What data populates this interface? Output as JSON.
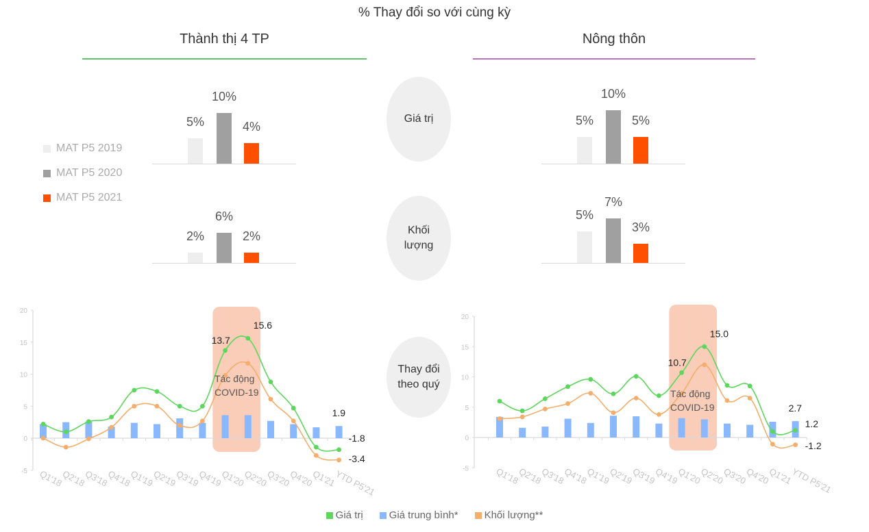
{
  "title": "% Thay đổi so với cùng kỳ",
  "regions": [
    {
      "name": "Thành thị 4 TP",
      "line_color": "#5cc46b"
    },
    {
      "name": "Nông thôn",
      "line_color": "#b773c0"
    }
  ],
  "metrics": [
    "Giá trị",
    "Khối\nlượng",
    "Thay đổi\ntheo quý"
  ],
  "metric_labels": {
    "value": "Giá trị",
    "volume_1": "Khối",
    "volume_2": "lượng",
    "quarterly_1": "Thay đổi",
    "quarterly_2": "theo quý"
  },
  "mat_legend": [
    {
      "label": "MAT P5 2019",
      "color": "#eeeeee"
    },
    {
      "label": "MAT P5 2020",
      "color": "#a0a0a0"
    },
    {
      "label": "MAT P5 2021",
      "color": "#ff5000"
    }
  ],
  "bottom_legend": [
    {
      "label": "Giá trị",
      "color": "#5cd65c"
    },
    {
      "label": "Giá trung bình*",
      "color": "#8ab8ff"
    },
    {
      "label": "Khối lượng**",
      "color": "#f5ad6b"
    }
  ],
  "colors": {
    "green": "#5cd65c",
    "blue": "#8ab8ff",
    "orange": "#f5ad6b",
    "covid_box": "#f9cdb8",
    "axis": "#d9d9d9",
    "tick": "#c8c8c8"
  },
  "annotation": {
    "covid_line1": "Tác động",
    "covid_line2": "COVID-19"
  },
  "chart_data": [
    {
      "type": "bar",
      "title": "Thành thị 4 TP - Giá trị",
      "categories": [
        "MAT P5 2019",
        "MAT P5 2020",
        "MAT P5 2021"
      ],
      "values": [
        5,
        10,
        4
      ],
      "labels": [
        "5%",
        "10%",
        "4%"
      ]
    },
    {
      "type": "bar",
      "title": "Thành thị 4 TP - Khối lượng",
      "categories": [
        "MAT P5 2019",
        "MAT P5 2020",
        "MAT P5 2021"
      ],
      "values": [
        2,
        6,
        2
      ],
      "labels": [
        "2%",
        "6%",
        "2%"
      ]
    },
    {
      "type": "bar",
      "title": "Nông thôn - Giá trị",
      "categories": [
        "MAT P5 2019",
        "MAT P5 2020",
        "MAT P5 2021"
      ],
      "values": [
        5,
        10,
        5
      ],
      "labels": [
        "5%",
        "10%",
        "5%"
      ]
    },
    {
      "type": "bar",
      "title": "Nông thôn - Khối lượng",
      "categories": [
        "MAT P5 2019",
        "MAT P5 2020",
        "MAT P5 2021"
      ],
      "values": [
        5,
        7,
        3
      ],
      "labels": [
        "5%",
        "7%",
        "3%"
      ]
    },
    {
      "type": "line",
      "title": "Thành thị 4 TP - Thay đổi theo quý",
      "categories": [
        "Q1'18",
        "Q2'18",
        "Q3'18",
        "Q4'18",
        "Q1'19",
        "Q2'19",
        "Q3'19",
        "Q4'19",
        "Q1'20",
        "Q2'20",
        "Q3'20",
        "Q4'20",
        "Q1'21",
        "YTD P5'21"
      ],
      "ylim": [
        -5,
        20
      ],
      "yticks": [
        -5,
        0,
        5,
        10,
        15,
        20
      ],
      "series": [
        {
          "name": "Giá trị",
          "kind": "line",
          "values": [
            2.2,
            1.0,
            2.6,
            3.3,
            7.5,
            7.3,
            5.0,
            5.0,
            13.7,
            15.6,
            8.8,
            4.7,
            -1.4,
            -1.8
          ]
        },
        {
          "name": "Giá trung bình*",
          "kind": "bar",
          "values": [
            2.2,
            2.5,
            2.6,
            1.8,
            2.4,
            2.2,
            3.1,
            2.4,
            3.6,
            3.6,
            2.7,
            2.2,
            1.7,
            1.9
          ]
        },
        {
          "name": "Khối lượng**",
          "kind": "line",
          "values": [
            0.0,
            -1.4,
            -0.1,
            1.7,
            5.0,
            5.0,
            2.0,
            2.7,
            9.8,
            11.7,
            6.1,
            2.7,
            -2.7,
            -3.4
          ]
        }
      ],
      "data_labels": [
        {
          "text": "13.7",
          "index": 8
        },
        {
          "text": "15.6",
          "index": 9
        },
        {
          "text": "1.9",
          "index": 13,
          "series": "Giá trung bình*"
        },
        {
          "text": "-1.8",
          "index": 13,
          "series": "Giá trị"
        },
        {
          "text": "-3.4",
          "index": 13,
          "series": "Khối lượng**"
        }
      ],
      "highlight": {
        "from": "Q1'20",
        "to": "Q2'20",
        "label": "Tác động COVID-19"
      }
    },
    {
      "type": "line",
      "title": "Nông thôn - Thay đổi theo quý",
      "categories": [
        "Q1'18",
        "Q2'18",
        "Q3'18",
        "Q4'18",
        "Q1'19",
        "Q2'19",
        "Q3'19",
        "Q4'19",
        "Q1'20",
        "Q2'20",
        "Q3'20",
        "Q4'20",
        "Q1'21",
        "YTD P5'21"
      ],
      "ylim": [
        -5,
        20
      ],
      "yticks": [
        -5,
        0,
        5,
        10,
        15,
        20
      ],
      "series": [
        {
          "name": "Giá trị",
          "kind": "line",
          "values": [
            6.0,
            4.4,
            6.4,
            8.4,
            9.6,
            7.2,
            10.1,
            6.9,
            10.7,
            15.0,
            8.6,
            8.5,
            1.0,
            1.2
          ]
        },
        {
          "name": "Giá trung bình*",
          "kind": "bar",
          "values": [
            3.4,
            1.6,
            1.8,
            3.1,
            2.4,
            3.6,
            3.5,
            2.3,
            3.2,
            3.0,
            2.3,
            2.1,
            2.6,
            2.7
          ]
        },
        {
          "name": "Khối lượng**",
          "kind": "line",
          "values": [
            3.1,
            3.4,
            4.7,
            5.6,
            7.3,
            4.1,
            6.5,
            3.8,
            7.3,
            12.0,
            6.1,
            6.5,
            -1.1,
            -1.2
          ]
        }
      ],
      "data_labels": [
        {
          "text": "10.7",
          "index": 8
        },
        {
          "text": "15.0",
          "index": 9
        },
        {
          "text": "2.7",
          "index": 13,
          "series": "Giá trung bình*"
        },
        {
          "text": "1.2",
          "index": 13,
          "series": "Giá trị"
        },
        {
          "text": "-1.2",
          "index": 13,
          "series": "Khối lượng**"
        }
      ],
      "highlight": {
        "from": "Q1'20",
        "to": "Q2'20",
        "label": "Tác động COVID-19"
      }
    }
  ]
}
